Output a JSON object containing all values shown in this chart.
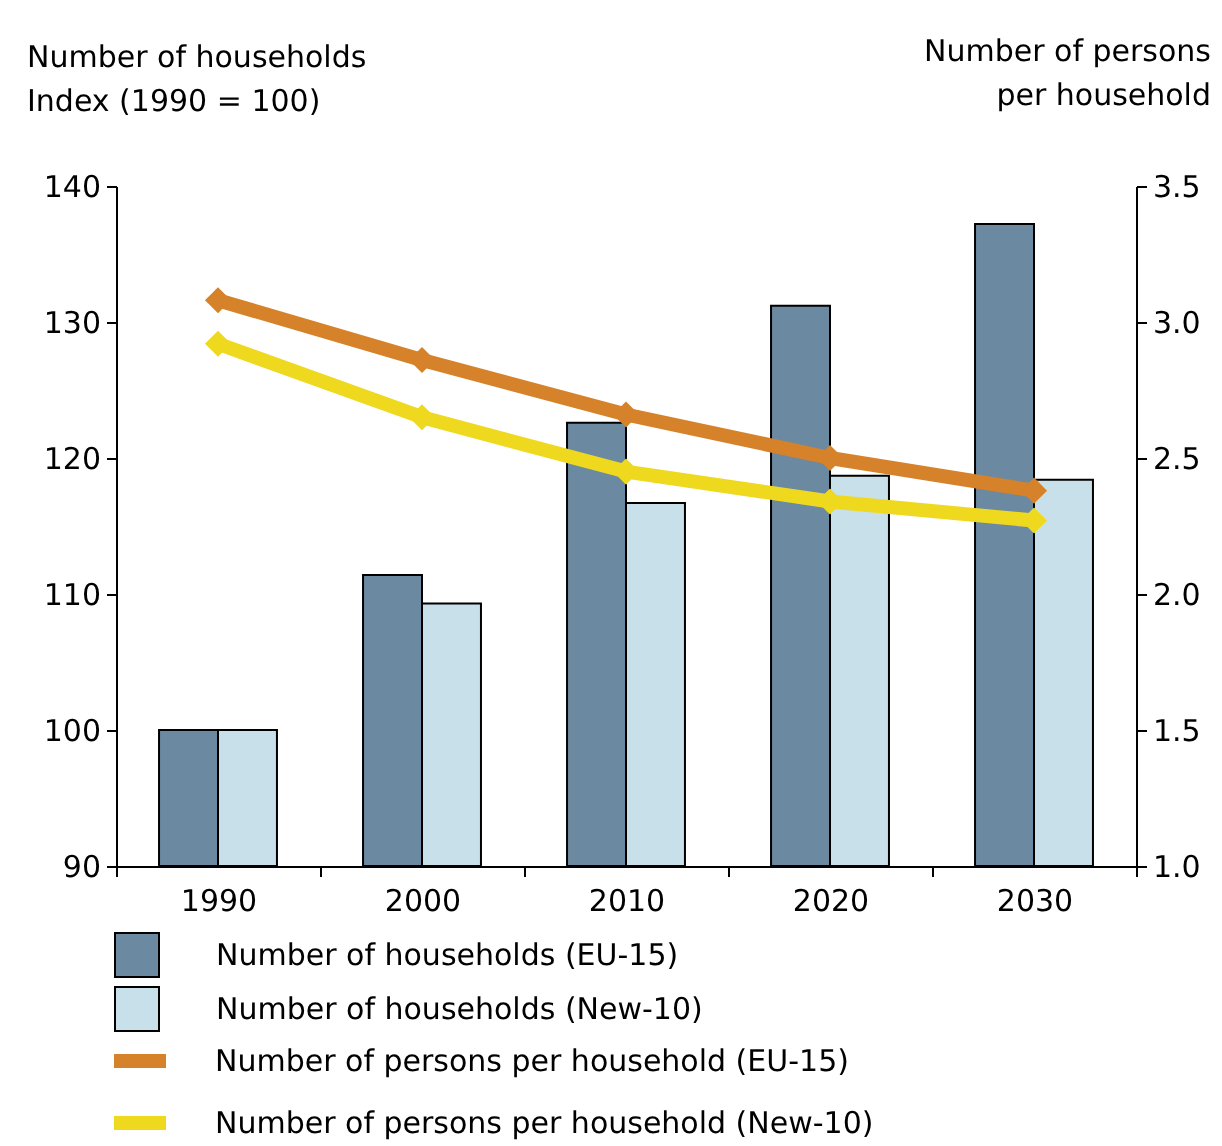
{
  "chart_data": {
    "type": "bar",
    "ylabel": "Number of households\nIndex (1990 = 100)",
    "y2label": "Number of persons\nper household",
    "categories": [
      "1990",
      "2000",
      "2010",
      "2020",
      "2030"
    ],
    "series": [
      {
        "name": "Number of households (EU-15)",
        "color": "#6b89a1",
        "values": [
          100,
          111.4,
          122.6,
          131.2,
          137.2
        ]
      },
      {
        "name": "Number of households (New-10)",
        "color": "#c8e0ea",
        "values": [
          100,
          109.3,
          116.7,
          118.7,
          118.4
        ]
      },
      {
        "name": "Number of persons per household (EU-15)",
        "type": "line",
        "axis": "y2",
        "color": "#d5822a",
        "values": [
          3.08,
          2.86,
          2.66,
          2.5,
          2.38
        ]
      },
      {
        "name": "Number of persons per household (New-10)",
        "type": "line",
        "axis": "y2",
        "color": "#efd91f",
        "values": [
          2.92,
          2.65,
          2.45,
          2.34,
          2.27
        ]
      }
    ],
    "ylim": [
      90,
      140
    ],
    "yticks": [
      90,
      100,
      110,
      120,
      130,
      140
    ],
    "y2lim": [
      1,
      3.5
    ],
    "y2ticks": [
      {
        "value": 1,
        "label": "1.0"
      },
      1.5,
      {
        "value": 2,
        "label": "2.0"
      },
      2.5,
      {
        "value": 3,
        "label": "3.0"
      },
      3.5
    ],
    "marker": "diamond",
    "legend": "bottom"
  }
}
